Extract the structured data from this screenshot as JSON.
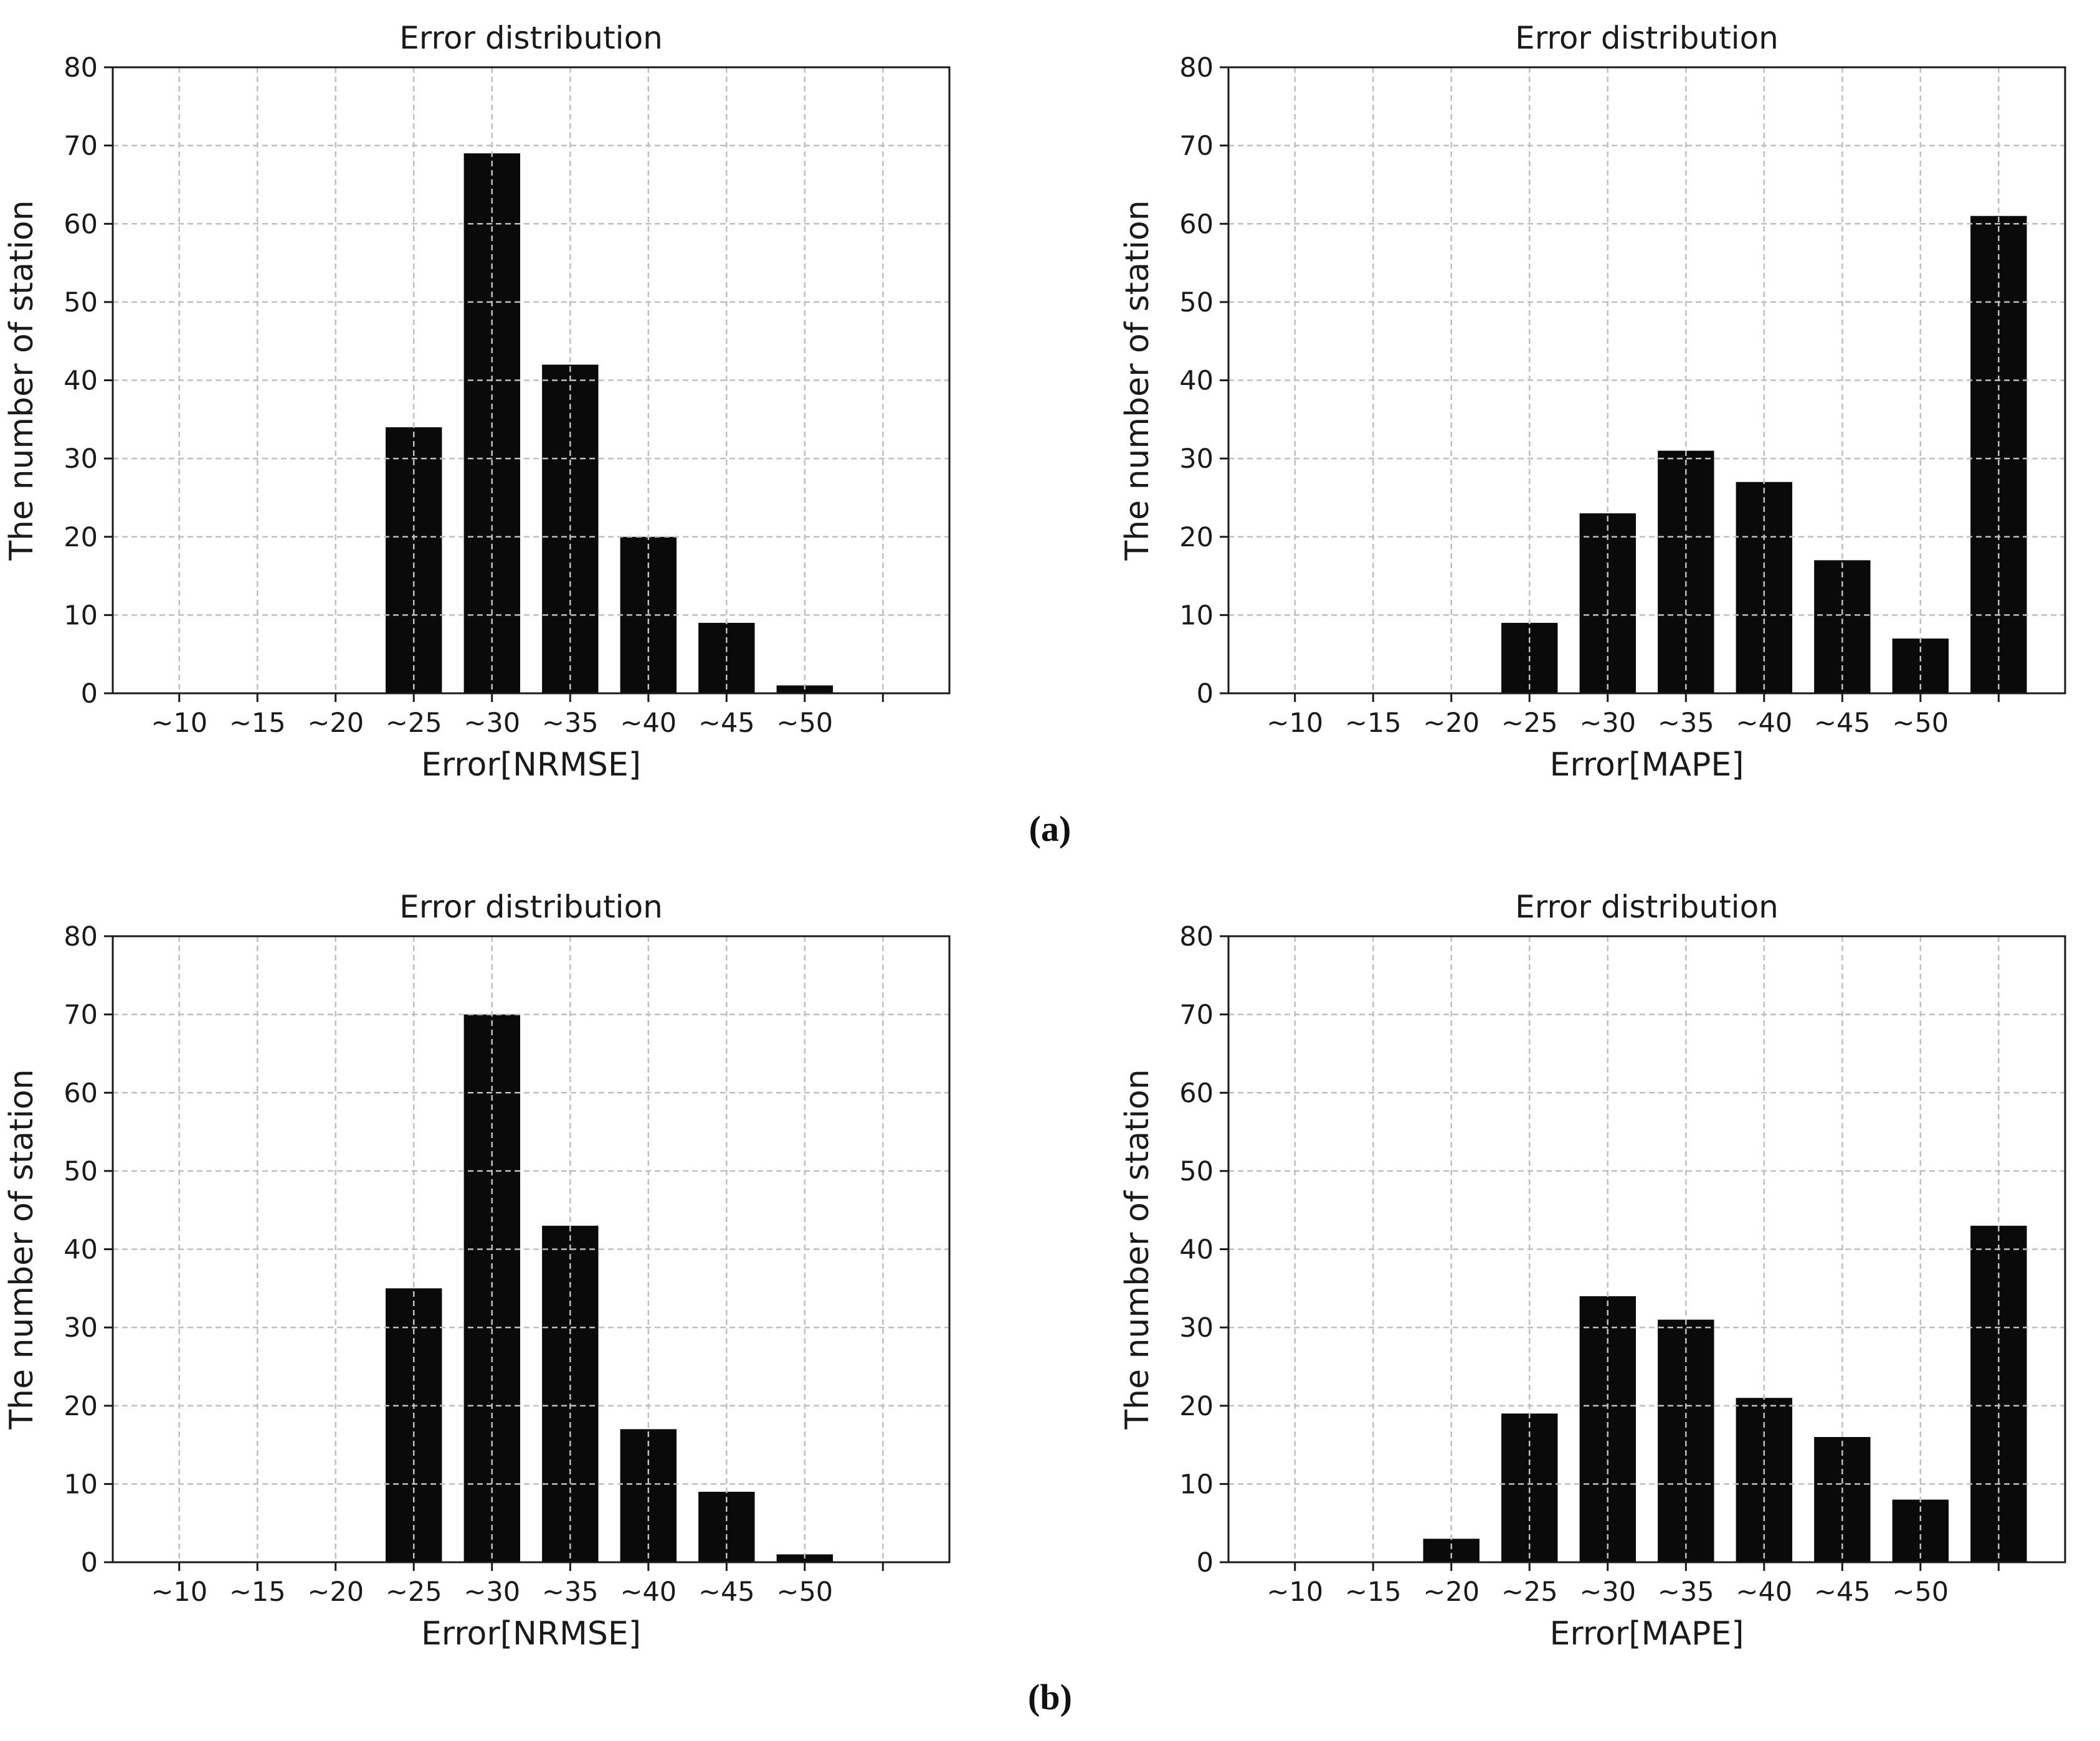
{
  "figure": {
    "background": "#ffffff",
    "text_color": "#1a1a1a",
    "bar_color": "#0a0a0a",
    "grid_color": "#bfbfbf",
    "spine_color": "#1a1a1a"
  },
  "captions": {
    "a": "(a)",
    "b": "(b)"
  },
  "chart_data": [
    {
      "id": "panel-a-nrmse",
      "type": "bar",
      "panel": "a",
      "title": "Error distribution",
      "xlabel": "Error[NRMSE]",
      "ylabel": "The number of station",
      "categories": [
        "~10",
        "~15",
        "~20",
        "~25",
        "~30",
        "~35",
        "~40",
        "~45",
        "~50",
        ""
      ],
      "values": [
        0,
        0,
        0,
        34,
        69,
        42,
        20,
        9,
        1,
        0
      ],
      "ylim": [
        0,
        80
      ],
      "ytick_interval": 10,
      "grid": true,
      "grid_style": "dashed",
      "grid_over_bars": true,
      "legend_position": "none"
    },
    {
      "id": "panel-a-mape",
      "type": "bar",
      "panel": "a",
      "title": "Error distribution",
      "xlabel": "Error[MAPE]",
      "ylabel": "The number of station",
      "categories": [
        "~10",
        "~15",
        "~20",
        "~25",
        "~30",
        "~35",
        "~40",
        "~45",
        "~50",
        ""
      ],
      "values": [
        0,
        0,
        0,
        9,
        23,
        31,
        27,
        17,
        7,
        61
      ],
      "ylim": [
        0,
        80
      ],
      "ytick_interval": 10,
      "grid": true,
      "grid_style": "dashed",
      "grid_over_bars": true,
      "legend_position": "none"
    },
    {
      "id": "panel-b-nrmse",
      "type": "bar",
      "panel": "b",
      "title": "Error distribution",
      "xlabel": "Error[NRMSE]",
      "ylabel": "The number of station",
      "categories": [
        "~10",
        "~15",
        "~20",
        "~25",
        "~30",
        "~35",
        "~40",
        "~45",
        "~50",
        ""
      ],
      "values": [
        0,
        0,
        0,
        35,
        70,
        43,
        17,
        9,
        1,
        0
      ],
      "ylim": [
        0,
        80
      ],
      "ytick_interval": 10,
      "grid": true,
      "grid_style": "dashed",
      "grid_over_bars": true,
      "legend_position": "none"
    },
    {
      "id": "panel-b-mape",
      "type": "bar",
      "panel": "b",
      "title": "Error distribution",
      "xlabel": "Error[MAPE]",
      "ylabel": "The number of station",
      "categories": [
        "~10",
        "~15",
        "~20",
        "~25",
        "~30",
        "~35",
        "~40",
        "~45",
        "~50",
        ""
      ],
      "values": [
        0,
        0,
        3,
        19,
        34,
        31,
        21,
        16,
        8,
        43
      ],
      "ylim": [
        0,
        80
      ],
      "ytick_interval": 10,
      "grid": true,
      "grid_style": "dashed",
      "grid_over_bars": true,
      "legend_position": "none"
    }
  ]
}
